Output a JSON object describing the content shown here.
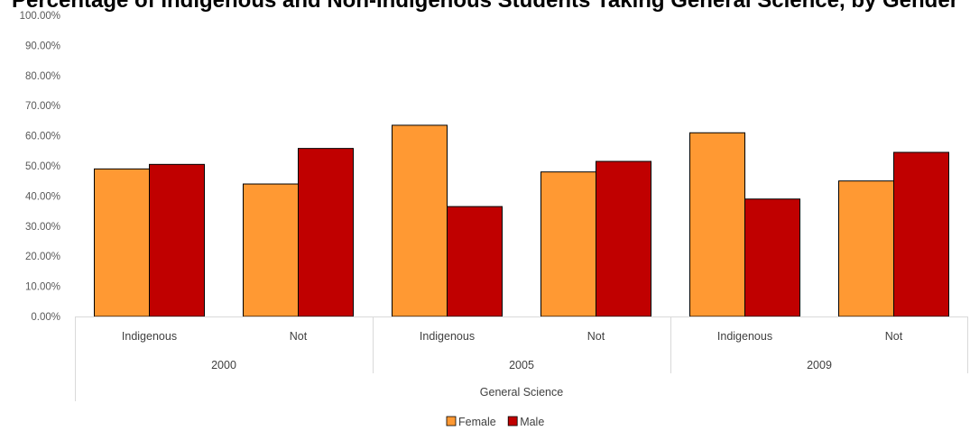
{
  "chart_data": {
    "type": "bar",
    "title": "Percentage of Indigenous and Non-Indigenous Students Taking General Science, by Gender",
    "ylim": [
      0,
      1
    ],
    "y_ticks": [
      "0.00%",
      "10.00%",
      "20.00%",
      "30.00%",
      "40.00%",
      "50.00%",
      "60.00%",
      "70.00%",
      "80.00%",
      "90.00%",
      "100.00%"
    ],
    "grid": false,
    "legend_position": "bottom",
    "subject_label": "General Science",
    "years": [
      "2000",
      "2005",
      "2009"
    ],
    "categories": [
      "Indigenous",
      "Not",
      "Indigenous",
      "Not",
      "Indigenous",
      "Not"
    ],
    "series": [
      {
        "name": "Female",
        "color": "#ff9933",
        "values": [
          0.49,
          0.44,
          0.635,
          0.48,
          0.61,
          0.45
        ]
      },
      {
        "name": "Male",
        "color": "#c00000",
        "values": [
          0.505,
          0.558,
          0.365,
          0.515,
          0.39,
          0.545
        ]
      }
    ]
  }
}
